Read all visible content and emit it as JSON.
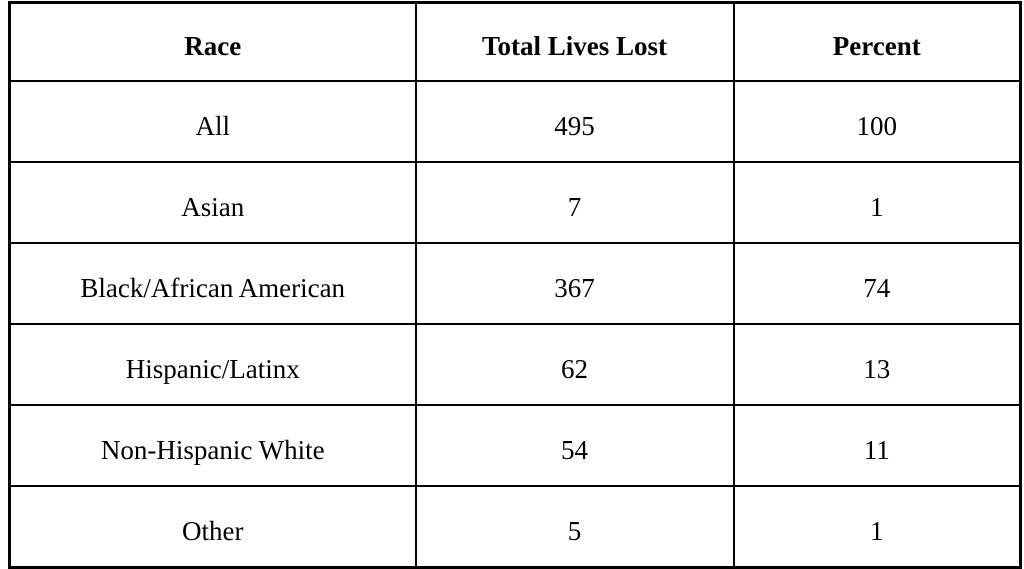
{
  "chart_data": {
    "type": "table",
    "title": "",
    "columns": [
      "Race",
      "Total Lives Lost",
      "Percent"
    ],
    "rows": [
      [
        "All",
        "495",
        "100"
      ],
      [
        "Asian",
        "7",
        "1"
      ],
      [
        "Black/African American",
        "367",
        "74"
      ],
      [
        "Hispanic/Latinx",
        "62",
        "13"
      ],
      [
        "Non-Hispanic White",
        "54",
        "11"
      ],
      [
        "Other",
        "5",
        "1"
      ]
    ]
  },
  "colors": {
    "border": "#000000",
    "text": "#000000",
    "background": "#ffffff"
  }
}
